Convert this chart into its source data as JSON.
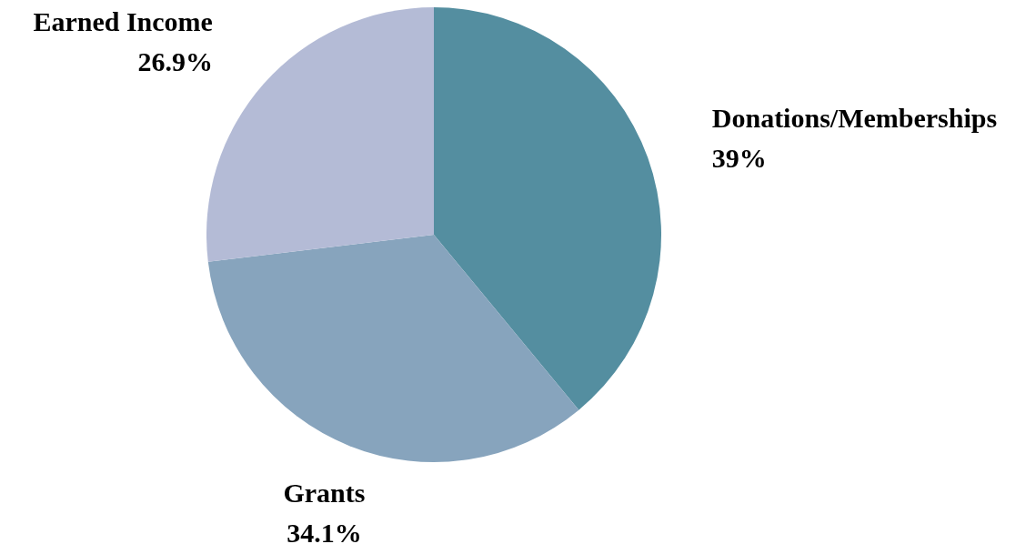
{
  "chart_data": {
    "type": "pie",
    "categories": [
      "Donations/Memberships",
      "Grants",
      "Earned Income"
    ],
    "values": [
      39,
      34.1,
      26.9
    ],
    "colors": [
      "#548ea0",
      "#87a4bd",
      "#b4bbd6"
    ],
    "value_labels": [
      "39%",
      "34.1%",
      "26.9%"
    ]
  }
}
